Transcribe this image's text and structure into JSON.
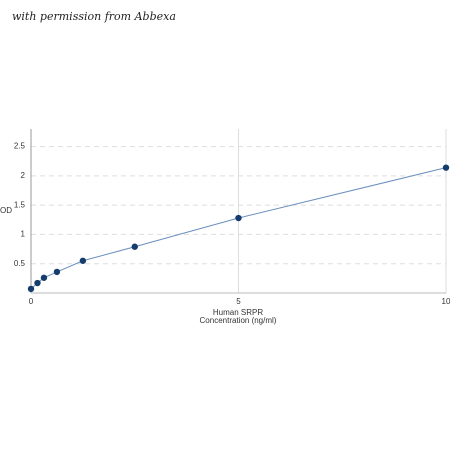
{
  "watermark": "with permission from Abbexa",
  "chart_data": {
    "type": "line",
    "ylabel": "OD",
    "xlabel": [
      "Human SRPR",
      "Concentration (ng/ml)"
    ],
    "x": [
      0,
      0.156,
      0.312,
      0.625,
      1.25,
      2.5,
      5,
      10
    ],
    "series": [
      {
        "color": "#143d6e",
        "values": [
          0.07,
          0.17,
          0.26,
          0.36,
          0.55,
          0.79,
          1.28,
          2.14
        ]
      }
    ],
    "line_color": "#6b8fbf",
    "xlim": [
      0,
      10
    ],
    "xticks": [
      0,
      5,
      10
    ],
    "ylim": [
      0,
      2.8
    ],
    "yticks": [
      0.5,
      1,
      1.5,
      2,
      2.5
    ],
    "grid": true
  }
}
